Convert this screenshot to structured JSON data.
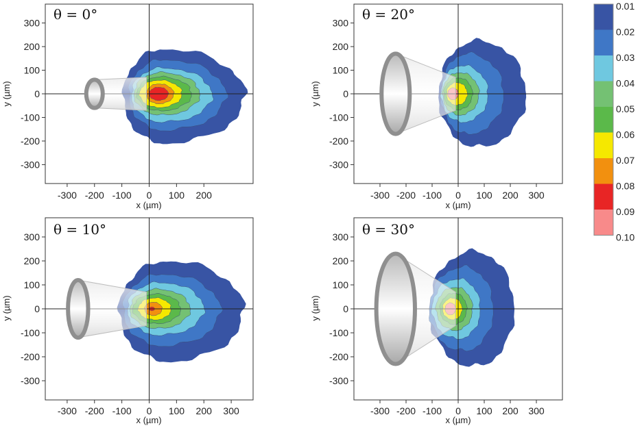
{
  "chart_data": [
    {
      "type": "heatmap",
      "title": "θ = 0°",
      "theta": "0°",
      "xlabel": "x (µm)",
      "ylabel": "y (µm)",
      "xlim": [
        -380,
        380
      ],
      "ylim": [
        -380,
        380
      ],
      "xticks": [
        "-300",
        "-200",
        "-100",
        "0",
        "100",
        "200"
      ],
      "xtick_values": [
        -300,
        -200,
        -100,
        0,
        100,
        200
      ],
      "yticks": [
        "300",
        "200",
        "100",
        "0",
        "-100",
        "-200",
        "-300"
      ],
      "ytick_values": [
        300,
        200,
        100,
        0,
        -100,
        -200,
        -300
      ],
      "contour_levels": [
        {
          "level": 0.01,
          "cx": 55,
          "cy": -10,
          "rx": 295,
          "ry": 200,
          "left": 150
        },
        {
          "level": 0.02,
          "cx": 55,
          "cy": -5,
          "rx": 225,
          "ry": 150,
          "left": 130
        },
        {
          "level": 0.03,
          "cx": 50,
          "cy": -5,
          "rx": 180,
          "ry": 115,
          "left": 115
        },
        {
          "level": 0.04,
          "cx": 45,
          "cy": 0,
          "rx": 140,
          "ry": 90,
          "left": 100
        },
        {
          "level": 0.05,
          "cx": 40,
          "cy": 0,
          "rx": 115,
          "ry": 72,
          "left": 85
        },
        {
          "level": 0.06,
          "cx": 35,
          "cy": 0,
          "rx": 85,
          "ry": 58,
          "left": 70
        },
        {
          "level": 0.07,
          "cx": 35,
          "cy": 0,
          "rx": 55,
          "ry": 42,
          "left": 45
        },
        {
          "level": 0.08,
          "cx": 35,
          "cy": 0,
          "rx": 35,
          "ry": 28,
          "left": 35
        }
      ],
      "fiber": {
        "tip_x": -200,
        "tip_radius": 60,
        "end_radius": 70
      }
    },
    {
      "type": "heatmap",
      "title": "θ = 20°",
      "theta": "20°",
      "xlabel": "x (µm)",
      "ylabel": "y (µm)",
      "xlim": [
        -400,
        400
      ],
      "ylim": [
        -380,
        380
      ],
      "xticks": [
        "-300",
        "-200",
        "-100",
        "0",
        "100",
        "200",
        "300"
      ],
      "xtick_values": [
        -300,
        -200,
        -100,
        0,
        100,
        200,
        300
      ],
      "yticks": [
        "300",
        "200",
        "100",
        "0",
        "-100",
        "-200",
        "-300"
      ],
      "ytick_values": [
        300,
        200,
        100,
        0,
        -100,
        -200,
        -300
      ],
      "contour_levels": [
        {
          "level": 0.01,
          "cx": 75,
          "cy": 0,
          "rx": 185,
          "ry": 225,
          "left": 150
        },
        {
          "level": 0.02,
          "cx": 35,
          "cy": 0,
          "rx": 140,
          "ry": 170,
          "left": 100
        },
        {
          "level": 0.03,
          "cx": 15,
          "cy": 0,
          "rx": 100,
          "ry": 120,
          "left": 80
        },
        {
          "level": 0.04,
          "cx": 5,
          "cy": 0,
          "rx": 75,
          "ry": 90,
          "left": 65
        },
        {
          "level": 0.05,
          "cx": 0,
          "cy": 0,
          "rx": 55,
          "ry": 68,
          "left": 55
        },
        {
          "level": 0.06,
          "cx": -5,
          "cy": 0,
          "rx": 40,
          "ry": 48,
          "left": 40
        },
        {
          "level": 0.1,
          "cx": -20,
          "cy": 0,
          "rx": 20,
          "ry": 25,
          "left": 20
        }
      ],
      "fiber": {
        "tip_x": -240,
        "tip_radius": 170,
        "end_radius": 70
      }
    },
    {
      "type": "heatmap",
      "title": "θ = 10°",
      "theta": "10°",
      "xlabel": "x (µm)",
      "ylabel": "y (µm)",
      "xlim": [
        -380,
        380
      ],
      "ylim": [
        -380,
        380
      ],
      "xticks": [
        "-300",
        "-200",
        "-100",
        "0",
        "100",
        "200",
        "300"
      ],
      "xtick_values": [
        -300,
        -200,
        -100,
        0,
        100,
        200,
        300
      ],
      "yticks": [
        "300",
        "200",
        "100",
        "0",
        "-100",
        "-200",
        "-300"
      ],
      "ytick_values": [
        300,
        200,
        100,
        0,
        -100,
        -200,
        -300
      ],
      "contour_levels": [
        {
          "level": 0.01,
          "cx": 70,
          "cy": -10,
          "rx": 275,
          "ry": 210,
          "left": 180
        },
        {
          "level": 0.02,
          "cx": 50,
          "cy": -5,
          "rx": 210,
          "ry": 150,
          "left": 145
        },
        {
          "level": 0.03,
          "cx": 40,
          "cy": 0,
          "rx": 160,
          "ry": 110,
          "left": 120
        },
        {
          "level": 0.04,
          "cx": 30,
          "cy": 0,
          "rx": 120,
          "ry": 82,
          "left": 100
        },
        {
          "level": 0.05,
          "cx": 25,
          "cy": 0,
          "rx": 90,
          "ry": 62,
          "left": 85
        },
        {
          "level": 0.06,
          "cx": 20,
          "cy": 0,
          "rx": 60,
          "ry": 46,
          "left": 60
        },
        {
          "level": 0.07,
          "cx": 15,
          "cy": 0,
          "rx": 32,
          "ry": 28,
          "left": 32
        },
        {
          "level": 0.08,
          "cx": 10,
          "cy": 0,
          "rx": 10,
          "ry": 8,
          "left": 10
        }
      ],
      "fiber": {
        "tip_x": -260,
        "tip_radius": 120,
        "end_radius": 70
      }
    },
    {
      "type": "heatmap",
      "title": "θ = 30°",
      "theta": "30°",
      "xlabel": "x (µm)",
      "ylabel": "y (µm)",
      "xlim": [
        -400,
        400
      ],
      "ylim": [
        -380,
        380
      ],
      "xticks": [
        "-300",
        "-200",
        "-100",
        "0",
        "100",
        "200",
        "300"
      ],
      "xtick_values": [
        -300,
        -200,
        -100,
        0,
        100,
        200,
        300
      ],
      "yticks": [
        "300",
        "200",
        "100",
        "0",
        "-100",
        "-200",
        "-300"
      ],
      "ytick_values": [
        300,
        200,
        100,
        0,
        -100,
        -200,
        -300
      ],
      "contour_levels": [
        {
          "level": 0.01,
          "cx": 60,
          "cy": 0,
          "rx": 155,
          "ry": 240,
          "left": 170
        },
        {
          "level": 0.02,
          "cx": 20,
          "cy": 0,
          "rx": 115,
          "ry": 175,
          "left": 130
        },
        {
          "level": 0.03,
          "cx": 0,
          "cy": 0,
          "rx": 85,
          "ry": 125,
          "left": 100
        },
        {
          "level": 0.04,
          "cx": -10,
          "cy": 0,
          "rx": 65,
          "ry": 90,
          "left": 75
        },
        {
          "level": 0.05,
          "cx": -15,
          "cy": 0,
          "rx": 48,
          "ry": 65,
          "left": 55
        },
        {
          "level": 0.06,
          "cx": -20,
          "cy": 0,
          "rx": 35,
          "ry": 45,
          "left": 40
        },
        {
          "level": 0.1,
          "cx": -30,
          "cy": 0,
          "rx": 20,
          "ry": 25,
          "left": 20
        }
      ],
      "fiber": {
        "tip_x": -240,
        "tip_radius": 230,
        "end_radius": 70
      }
    }
  ],
  "colorbar": {
    "labels": [
      "0.01",
      "0.02",
      "0.03",
      "0.04",
      "0.05",
      "0.06",
      "0.07",
      "0.08",
      "0.09",
      "0.10"
    ],
    "colors": [
      "#3854a4",
      "#3f77c6",
      "#6fc8e0",
      "#74c173",
      "#5bb94a",
      "#f5e800",
      "#f2900f",
      "#e82525",
      "#f88a8a"
    ]
  }
}
